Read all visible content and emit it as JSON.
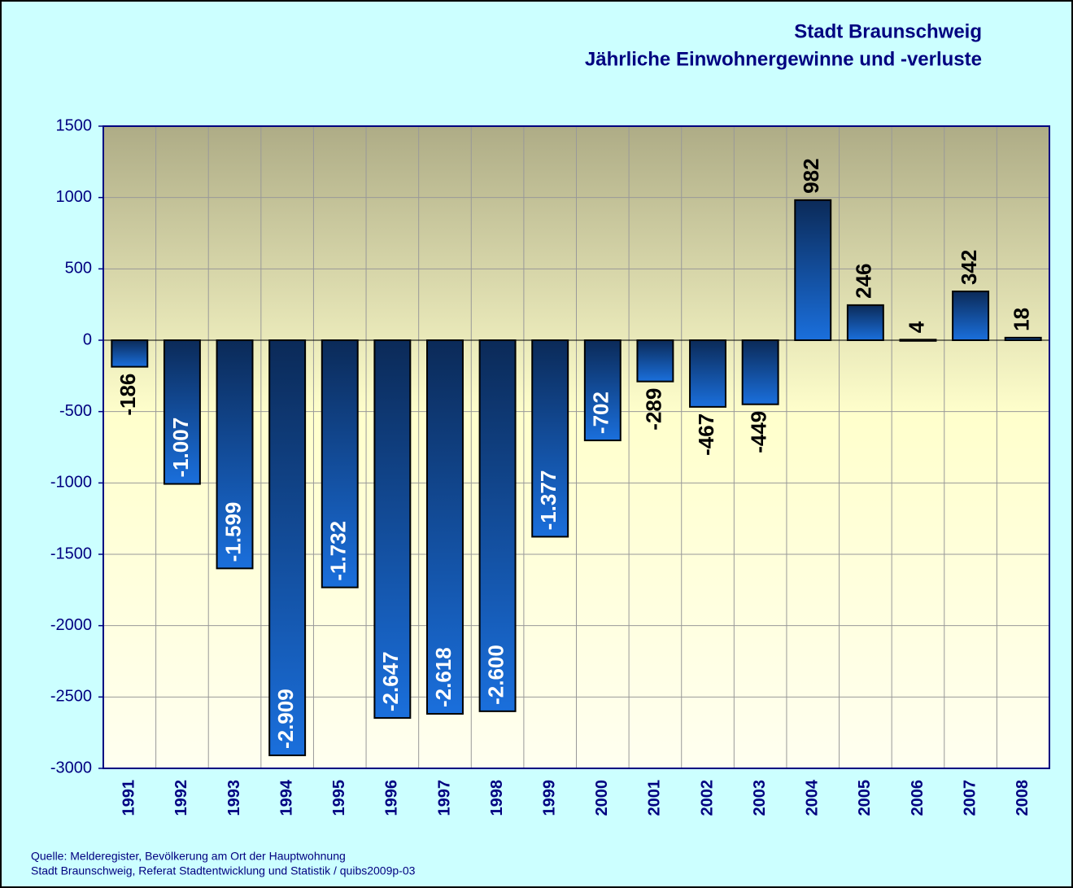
{
  "chart_data": {
    "type": "bar",
    "title": "Stadt Braunschweig",
    "subtitle": "Jährliche Einwohnergewinne und -verluste",
    "categories": [
      "1991",
      "1992",
      "1993",
      "1994",
      "1995",
      "1996",
      "1997",
      "1998",
      "1999",
      "2000",
      "2001",
      "2002",
      "2003",
      "2004",
      "2005",
      "2006",
      "2007",
      "2008"
    ],
    "values": [
      -186,
      -1007,
      -1599,
      -2909,
      -1732,
      -2647,
      -2618,
      -2600,
      -1377,
      -702,
      -289,
      -467,
      -449,
      982,
      246,
      4,
      342,
      18
    ],
    "value_labels": [
      "-186",
      "-1.007",
      "-1.599",
      "-2.909",
      "-1.732",
      "-2.647",
      "-2.618",
      "-2.600",
      "-1.377",
      "-702",
      "-289",
      "-467",
      "-449",
      "982",
      "246",
      "4",
      "342",
      "18"
    ],
    "color": "#1565c8",
    "ylim": [
      -3000,
      1500
    ],
    "yticks": [
      -3000,
      -2500,
      -2000,
      -1500,
      -1000,
      -500,
      0,
      500,
      1000,
      1500
    ],
    "grid": true,
    "notes": [
      "Quelle: Melderegister, Bevölkerung am Ort der Hauptwohnung",
      "Stadt Braunschweig, Referat Stadtentwicklung und Statistik / quibs2009p-03"
    ]
  }
}
